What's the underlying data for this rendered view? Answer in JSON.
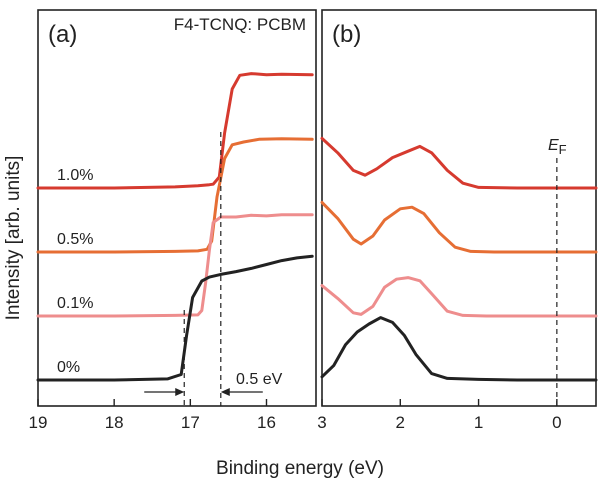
{
  "chart_data": [
    {
      "panel": "(a)",
      "type": "line",
      "title": "F4-TCNQ: PCBM",
      "xlabel": "",
      "ylabel": "Intensity [arb. units]",
      "xlim": [
        19,
        15.35
      ],
      "x_reversed": true,
      "xticks": [
        19,
        18,
        17,
        16
      ],
      "grid": false,
      "legend": "none",
      "series": [
        {
          "name": "1.0%",
          "color": "#d63a2f",
          "offset": 3,
          "x": [
            19,
            18,
            17.2,
            16.9,
            16.75,
            16.7,
            16.62,
            16.55,
            16.45,
            16.35,
            16.2,
            16.0,
            15.8,
            15.4
          ],
          "y": [
            0,
            0,
            0.02,
            0.04,
            0.06,
            0.07,
            0.2,
            1.0,
            1.8,
            2.05,
            2.08,
            2.06,
            2.07,
            2.06
          ]
        },
        {
          "name": "0.5%",
          "color": "#e66e34",
          "offset": 2,
          "x": [
            19,
            18,
            17.2,
            16.9,
            16.78,
            16.72,
            16.65,
            16.55,
            16.45,
            16.3,
            16.1,
            15.8,
            15.4
          ],
          "y": [
            0,
            0,
            0.01,
            0.02,
            0.05,
            0.2,
            1.0,
            1.7,
            1.95,
            2.0,
            2.05,
            2.06,
            2.05
          ]
        },
        {
          "name": "0.1%",
          "color": "#ee8d8d",
          "offset": 1,
          "x": [
            19,
            18,
            17.2,
            16.9,
            16.85,
            16.8,
            16.75,
            16.7,
            16.6,
            16.4,
            16.2,
            16.0,
            15.8,
            15.4
          ],
          "y": [
            0,
            0,
            0.01,
            0.02,
            0.1,
            0.6,
            1.2,
            1.7,
            1.8,
            1.8,
            1.83,
            1.82,
            1.84,
            1.84
          ]
        },
        {
          "name": "0%",
          "color": "#222222",
          "offset": 0,
          "x": [
            19,
            18,
            17.3,
            17.12,
            17.05,
            16.97,
            16.85,
            16.75,
            16.6,
            16.4,
            16.2,
            16.0,
            15.8,
            15.6,
            15.4
          ],
          "y": [
            0,
            0,
            0.02,
            0.1,
            0.8,
            1.5,
            1.8,
            1.87,
            1.92,
            1.97,
            2.03,
            2.1,
            2.17,
            2.22,
            2.25
          ]
        }
      ],
      "annotations": [
        {
          "text": "0.5 eV",
          "from_x": 17.08,
          "to_x": 16.6
        }
      ]
    },
    {
      "panel": "(b)",
      "type": "line",
      "xlabel": "Binding energy (eV)",
      "xlim": [
        3,
        -0.5
      ],
      "x_reversed": true,
      "xticks": [
        3,
        2,
        1,
        0
      ],
      "grid": false,
      "legend": "none",
      "fermi_label": "E",
      "fermi_subscript": "F",
      "fermi_x": 0,
      "series": [
        {
          "name": "1.0%",
          "color": "#d63a2f",
          "offset": 3,
          "x": [
            3,
            2.8,
            2.6,
            2.45,
            2.3,
            2.1,
            1.9,
            1.75,
            1.6,
            1.4,
            1.2,
            1.0,
            0.5,
            0,
            -0.5
          ],
          "y": [
            1.55,
            1.1,
            0.55,
            0.4,
            0.6,
            0.95,
            1.15,
            1.3,
            1.1,
            0.55,
            0.15,
            0.02,
            0,
            0,
            0
          ]
        },
        {
          "name": "0.5%",
          "color": "#e66e34",
          "offset": 2,
          "x": [
            3,
            2.8,
            2.6,
            2.5,
            2.35,
            2.2,
            2.0,
            1.85,
            1.7,
            1.5,
            1.3,
            1.1,
            0.8,
            0,
            -0.5
          ],
          "y": [
            1.55,
            1.05,
            0.4,
            0.25,
            0.5,
            1.0,
            1.35,
            1.4,
            1.2,
            0.6,
            0.15,
            0.02,
            0,
            0,
            0
          ]
        },
        {
          "name": "0.1%",
          "color": "#ee8d8d",
          "offset": 1,
          "x": [
            3,
            2.8,
            2.6,
            2.5,
            2.35,
            2.2,
            2.05,
            1.9,
            1.75,
            1.6,
            1.4,
            1.2,
            0.9,
            0,
            -0.5
          ],
          "y": [
            0.95,
            0.55,
            0.1,
            0.05,
            0.3,
            0.9,
            1.15,
            1.2,
            1.1,
            0.7,
            0.15,
            0.02,
            0,
            0,
            0
          ]
        },
        {
          "name": "0%",
          "color": "#222222",
          "offset": 0,
          "x": [
            3,
            2.85,
            2.7,
            2.55,
            2.4,
            2.25,
            2.1,
            1.95,
            1.8,
            1.6,
            1.4,
            1.0,
            0.5,
            0,
            -0.5
          ],
          "y": [
            0.1,
            0.45,
            1.1,
            1.5,
            1.75,
            1.95,
            1.8,
            1.4,
            0.8,
            0.2,
            0.05,
            0.02,
            0,
            0,
            0
          ]
        }
      ]
    }
  ]
}
